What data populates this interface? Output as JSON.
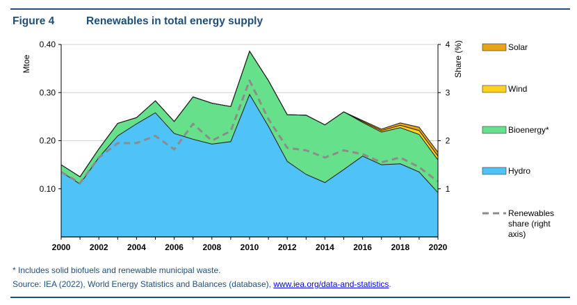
{
  "figure": {
    "number": "Figure 4",
    "title": "Renewables in total energy supply"
  },
  "footnotes": {
    "asterisk": "* Includes solid biofuels and renewable municipal waste.",
    "source_prefix": "Source: IEA (2022), World Energy Statistics and Balances (database), ",
    "source_link": "www.iea.org/data-and-statistics",
    "source_suffix": "."
  },
  "colors": {
    "hydro": "#4fc3f7",
    "bioenergy": "#66e08a",
    "wind": "#ffd21f",
    "solar": "#e8a317",
    "share_line": "#8c8c8c",
    "title": "#1f4e79"
  },
  "chart_data": {
    "type": "area",
    "stacked": true,
    "x": [
      2000,
      2001,
      2002,
      2003,
      2004,
      2005,
      2006,
      2007,
      2008,
      2009,
      2010,
      2011,
      2012,
      2013,
      2014,
      2015,
      2016,
      2017,
      2018,
      2019,
      2020
    ],
    "x_ticks": [
      "2000",
      "2002",
      "2004",
      "2006",
      "2008",
      "2010",
      "2012",
      "2014",
      "2016",
      "2018",
      "2020"
    ],
    "ylabel": "Mtoe",
    "ylim": [
      0,
      0.4
    ],
    "y_ticks": [
      "0.10",
      "0.20",
      "0.30",
      "0.40"
    ],
    "y2label": "Share (%)",
    "y2lim": [
      0,
      4
    ],
    "y2_ticks": [
      "1",
      "2",
      "3",
      "4"
    ],
    "grid": true,
    "legend_position": "right",
    "series": [
      {
        "name": "Hydro",
        "values": [
          0.135,
          0.11,
          0.165,
          0.21,
          0.235,
          0.258,
          0.215,
          0.203,
          0.193,
          0.198,
          0.296,
          0.23,
          0.157,
          0.13,
          0.113,
          0.14,
          0.168,
          0.15,
          0.152,
          0.135,
          0.092
        ]
      },
      {
        "name": "Bioenergy*",
        "values": [
          0.015,
          0.015,
          0.018,
          0.026,
          0.013,
          0.025,
          0.025,
          0.088,
          0.085,
          0.073,
          0.09,
          0.095,
          0.097,
          0.123,
          0.12,
          0.12,
          0.07,
          0.068,
          0.075,
          0.078,
          0.068
        ]
      },
      {
        "name": "Wind",
        "values": [
          0,
          0,
          0,
          0,
          0,
          0,
          0,
          0,
          0,
          0,
          0,
          0,
          0,
          0,
          0,
          0,
          0.002,
          0.003,
          0.005,
          0.008,
          0.008
        ]
      },
      {
        "name": "Solar",
        "values": [
          0,
          0,
          0,
          0,
          0,
          0,
          0,
          0,
          0,
          0,
          0,
          0,
          0,
          0,
          0,
          0,
          0.002,
          0.003,
          0.005,
          0.007,
          0.008
        ]
      },
      {
        "name": "Renewables share (right axis)",
        "axis": "right",
        "style": "dashed-line",
        "values": [
          1.35,
          1.12,
          1.65,
          1.95,
          1.95,
          2.1,
          1.82,
          2.35,
          2.0,
          2.2,
          3.25,
          2.45,
          1.85,
          1.8,
          1.65,
          1.8,
          1.72,
          1.55,
          1.65,
          1.45,
          1.15
        ]
      }
    ],
    "legend": [
      {
        "label": "Solar",
        "color_key": "solar"
      },
      {
        "label": "Wind",
        "color_key": "wind"
      },
      {
        "label": "Bioenergy*",
        "color_key": "bioenergy"
      },
      {
        "label": "Hydro",
        "color_key": "hydro"
      },
      {
        "label": "Renewables share (right axis)",
        "lines": [
          "Renewables",
          "share (right",
          "axis)"
        ],
        "color_key": "share_line",
        "style": "dashed"
      }
    ]
  }
}
